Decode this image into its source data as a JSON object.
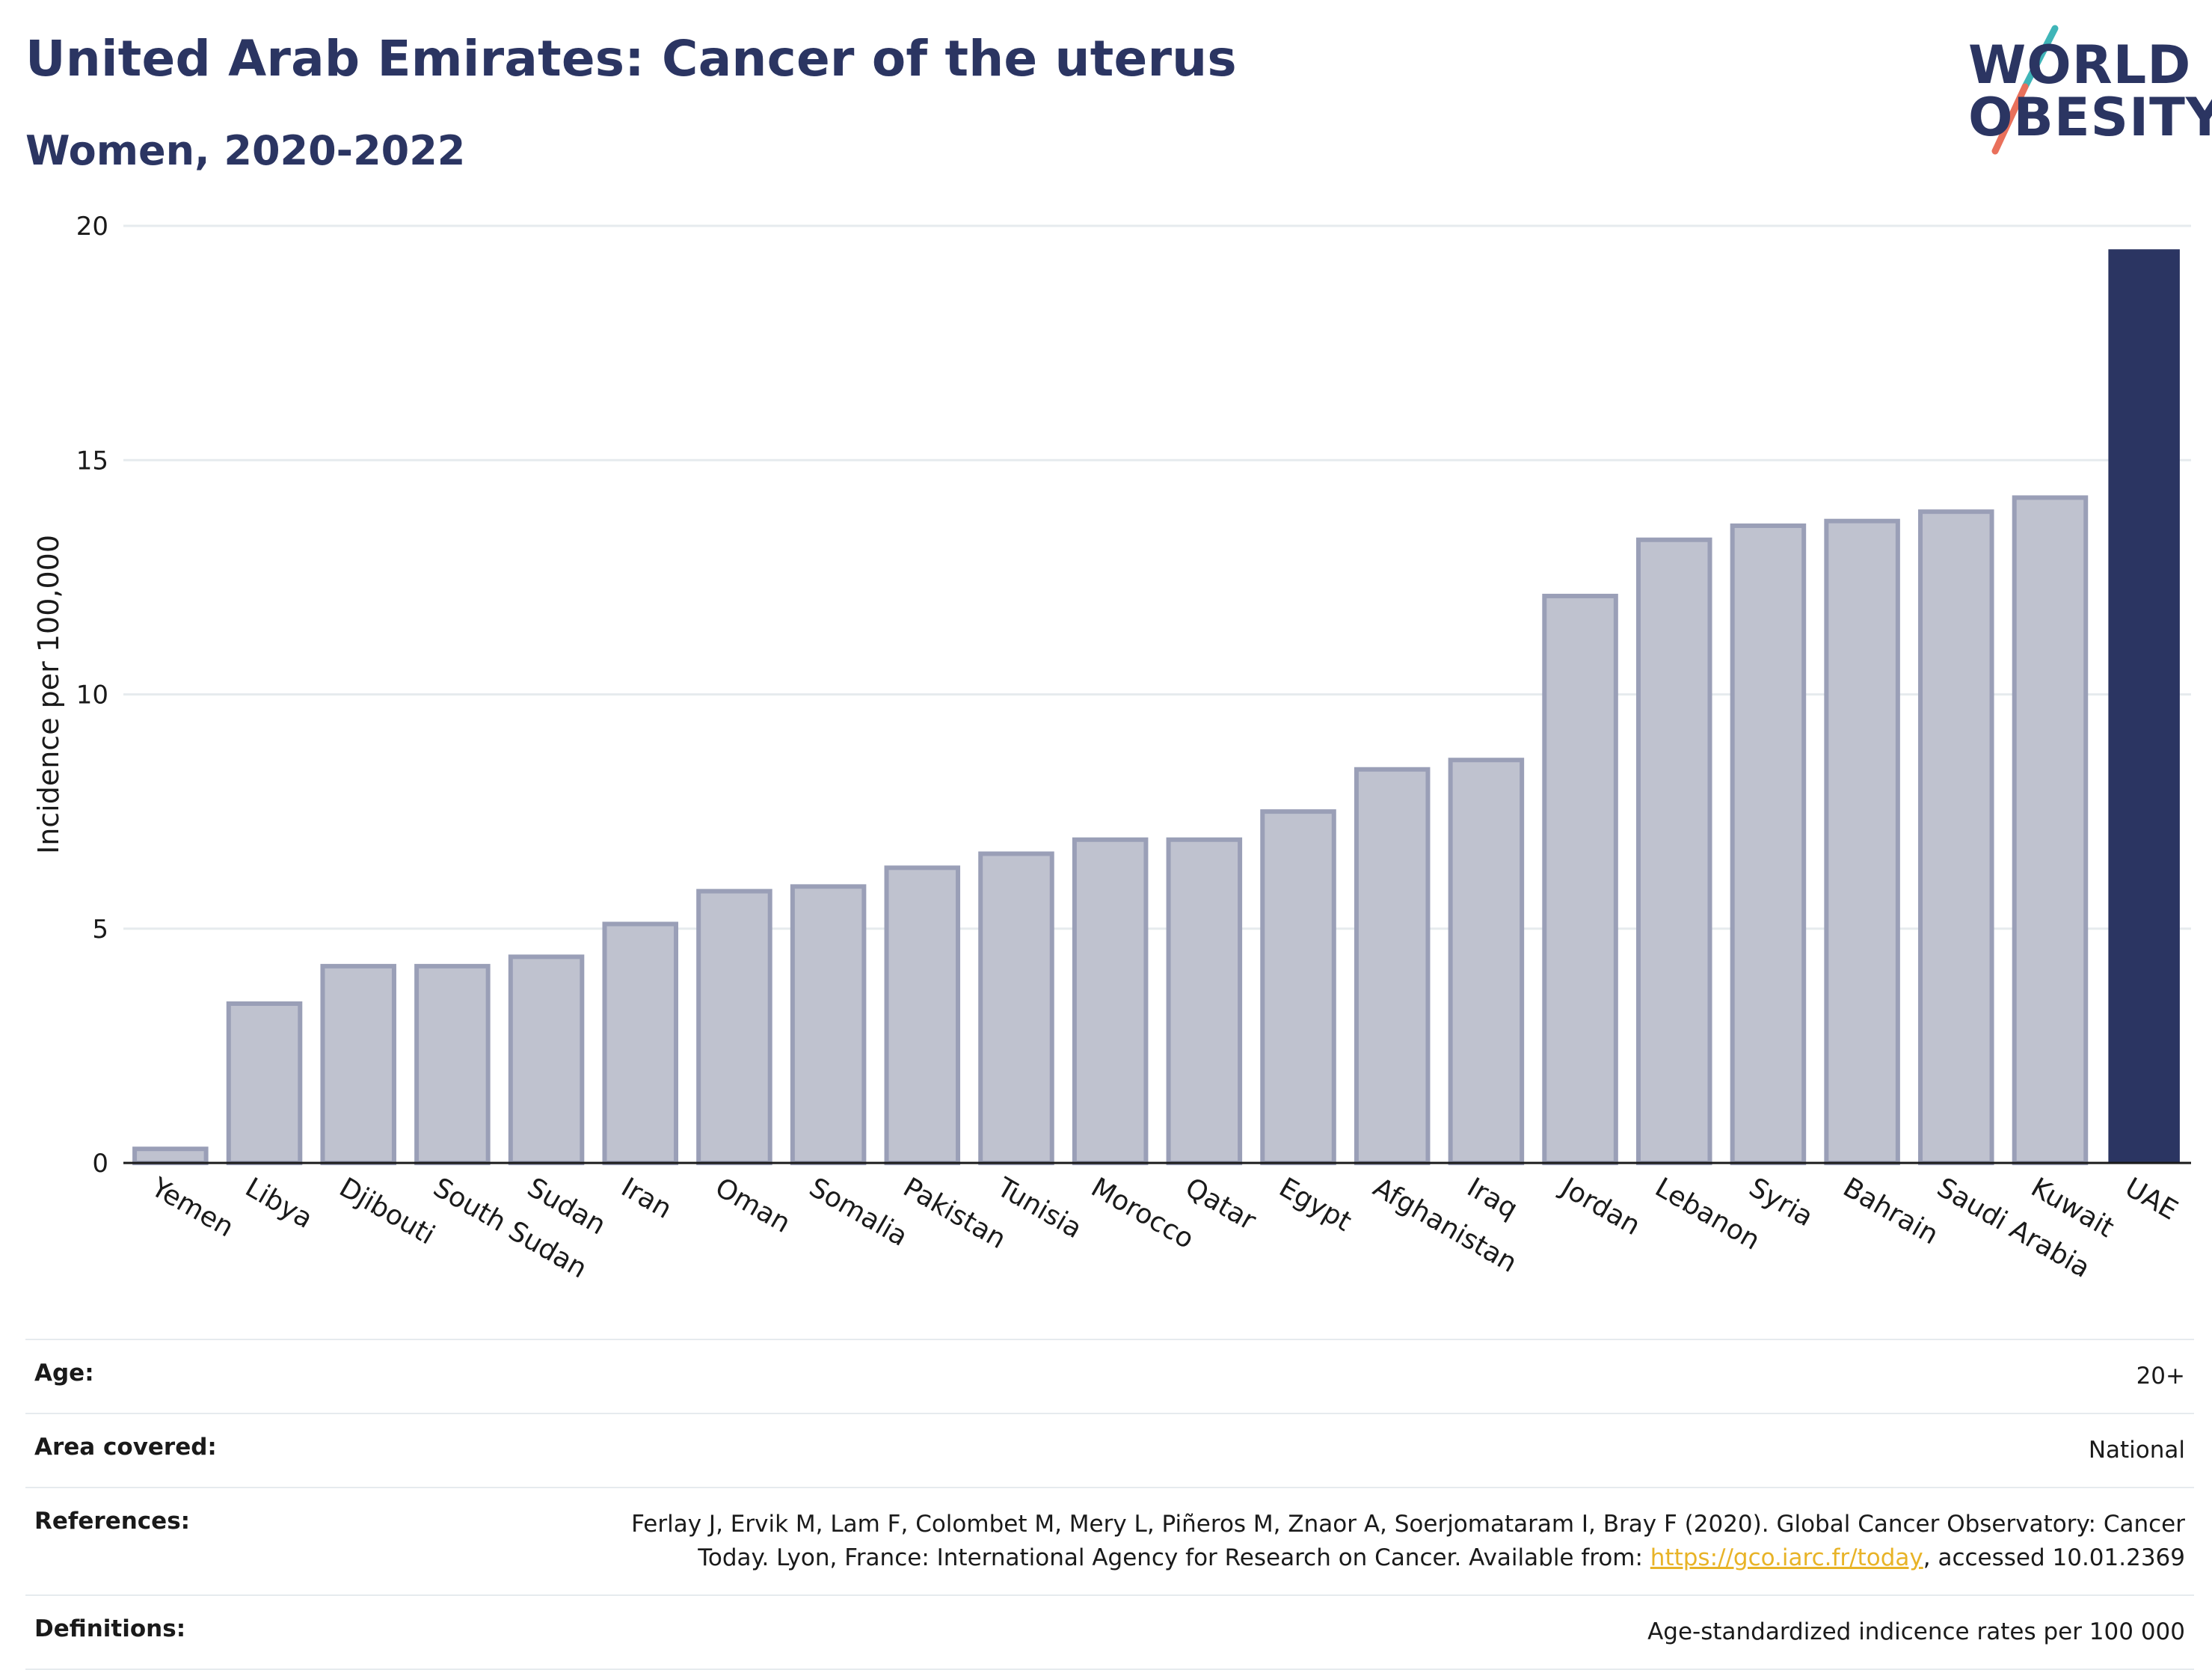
{
  "header": {
    "title": "United Arab Emirates: Cancer of the uterus",
    "subtitle": "Women, 2020-2022"
  },
  "logo": {
    "line1": "WORLD",
    "line2": "OBESITY",
    "accent_teal": "#3fb5b8",
    "accent_coral": "#e9705b"
  },
  "colors": {
    "highlight_bar": "#2b3562",
    "other_bar_fill": "#bfc2cf",
    "other_bar_stroke": "#9a9fb7",
    "gridline": "#e6ebee",
    "link": "#e8b327"
  },
  "chart_data": {
    "type": "bar",
    "categories": [
      "Yemen",
      "Libya",
      "Djibouti",
      "South Sudan",
      "Sudan",
      "Iran",
      "Oman",
      "Somalia",
      "Pakistan",
      "Tunisia",
      "Morocco",
      "Qatar",
      "Egypt",
      "Afghanistan",
      "Iraq",
      "Jordan",
      "Lebanon",
      "Syria",
      "Bahrain",
      "Saudi Arabia",
      "Kuwait",
      "UAE"
    ],
    "values": [
      0.3,
      3.4,
      4.2,
      4.2,
      4.4,
      5.1,
      5.8,
      5.9,
      6.3,
      6.6,
      6.9,
      6.9,
      7.5,
      8.4,
      8.6,
      12.1,
      13.3,
      13.6,
      13.7,
      13.9,
      14.2,
      19.5
    ],
    "highlight": "UAE",
    "ylabel": "Incidence per 100,000",
    "ylim": [
      0,
      20
    ],
    "yticks": [
      0,
      5,
      10,
      15,
      20
    ],
    "grid": true
  },
  "info": {
    "age_label": "Age:",
    "age_value": "20+",
    "area_label": "Area covered:",
    "area_value": "National",
    "references_label": "References:",
    "references_text_1": "Ferlay J, Ervik M, Lam F, Colombet M, Mery L, Piñeros M, Znaor A, Soerjomataram I, Bray F (2020). Global Cancer Observatory: Cancer",
    "references_text_2": "Today. Lyon, France: International Agency for Research on Cancer. Available from: ",
    "references_link": "https://gco.iarc.fr/today",
    "references_text_3": ", accessed 10.01.2369",
    "definitions_label": "Definitions:",
    "definitions_value": "Age-standardized indicence rates per 100 000"
  }
}
